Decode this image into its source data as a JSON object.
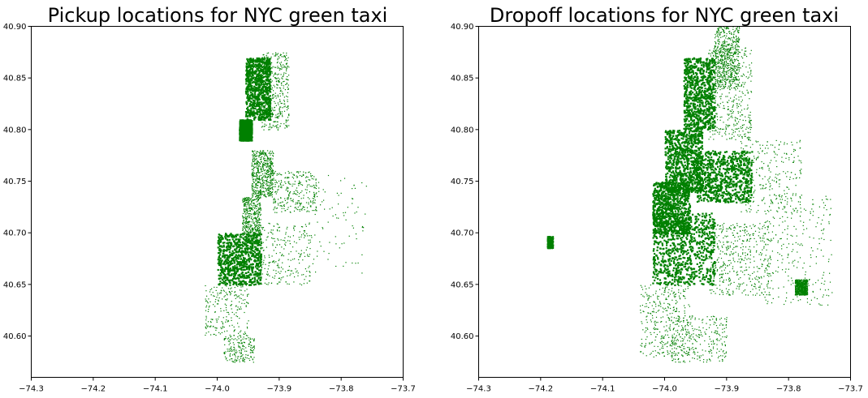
{
  "chart_data": [
    {
      "type": "scatter",
      "title": "Pickup locations for NYC green taxi",
      "xlabel": "",
      "ylabel": "",
      "xlim": [
        -74.3,
        -73.7
      ],
      "ylim": [
        40.56,
        40.9
      ],
      "xticks": [
        -74.3,
        -74.2,
        -74.1,
        -74.0,
        -73.9,
        -73.8,
        -73.7
      ],
      "yticks": [
        40.6,
        40.65,
        40.7,
        40.75,
        40.8,
        40.85,
        40.9
      ],
      "xtick_labels": [
        "−74.3",
        "−74.2",
        "−74.1",
        "−74.0",
        "−73.9",
        "−73.8",
        "−73.7"
      ],
      "ytick_labels": [
        "40.60",
        "40.65",
        "40.70",
        "40.75",
        "40.80",
        "40.85",
        "40.90"
      ],
      "color": "#008000",
      "grid": false,
      "clusters": [
        {
          "lon": [
            -73.965,
            -73.945
          ],
          "lat": [
            40.79,
            40.81
          ],
          "density": 0.9
        },
        {
          "lon": [
            -73.955,
            -73.915
          ],
          "lat": [
            40.81,
            40.87
          ],
          "density": 0.85
        },
        {
          "lon": [
            -73.93,
            -73.885
          ],
          "lat": [
            40.8,
            40.875
          ],
          "density": 0.5
        },
        {
          "lon": [
            -73.945,
            -73.91
          ],
          "lat": [
            40.735,
            40.78
          ],
          "density": 0.6
        },
        {
          "lon": [
            -73.91,
            -73.84
          ],
          "lat": [
            40.72,
            40.76
          ],
          "density": 0.3
        },
        {
          "lon": [
            -73.96,
            -73.93
          ],
          "lat": [
            40.69,
            40.735
          ],
          "density": 0.55
        },
        {
          "lon": [
            -74.0,
            -73.93
          ],
          "lat": [
            40.65,
            40.7
          ],
          "density": 0.85
        },
        {
          "lon": [
            -73.94,
            -73.85
          ],
          "lat": [
            40.65,
            40.71
          ],
          "density": 0.3
        },
        {
          "lon": [
            -74.02,
            -73.95
          ],
          "lat": [
            40.6,
            40.65
          ],
          "density": 0.25
        },
        {
          "lon": [
            -73.99,
            -73.94
          ],
          "lat": [
            40.575,
            40.6
          ],
          "density": 0.2
        },
        {
          "lon": [
            -73.85,
            -73.76
          ],
          "lat": [
            40.66,
            40.76
          ],
          "density": 0.1
        }
      ]
    },
    {
      "type": "scatter",
      "title": "Dropoff locations for NYC green taxi",
      "xlabel": "",
      "ylabel": "",
      "xlim": [
        -74.3,
        -73.7
      ],
      "ylim": [
        40.56,
        40.9
      ],
      "xticks": [
        -74.3,
        -74.2,
        -74.1,
        -74.0,
        -73.9,
        -73.8,
        -73.7
      ],
      "yticks": [
        40.6,
        40.65,
        40.7,
        40.75,
        40.8,
        40.85,
        40.9
      ],
      "xtick_labels": [
        "−74.3",
        "−74.2",
        "−74.1",
        "−74.0",
        "−73.9",
        "−73.8",
        "−73.7"
      ],
      "ytick_labels": [
        "40.60",
        "40.65",
        "40.70",
        "40.75",
        "40.80",
        "40.85",
        "40.90"
      ],
      "color": "#008000",
      "grid": false,
      "clusters": [
        {
          "lon": [
            -74.02,
            -73.96
          ],
          "lat": [
            40.7,
            40.75
          ],
          "density": 0.95
        },
        {
          "lon": [
            -74.0,
            -73.94
          ],
          "lat": [
            40.74,
            40.8
          ],
          "density": 0.95
        },
        {
          "lon": [
            -73.97,
            -73.92
          ],
          "lat": [
            40.8,
            40.87
          ],
          "density": 0.9
        },
        {
          "lon": [
            -73.92,
            -73.88
          ],
          "lat": [
            40.84,
            40.9
          ],
          "density": 0.6
        },
        {
          "lon": [
            -73.93,
            -73.86
          ],
          "lat": [
            40.79,
            40.88
          ],
          "density": 0.5
        },
        {
          "lon": [
            -73.95,
            -73.86
          ],
          "lat": [
            40.73,
            40.78
          ],
          "density": 0.85
        },
        {
          "lon": [
            -73.88,
            -73.78
          ],
          "lat": [
            40.72,
            40.79
          ],
          "density": 0.3
        },
        {
          "lon": [
            -74.02,
            -73.92
          ],
          "lat": [
            40.65,
            40.72
          ],
          "density": 0.9
        },
        {
          "lon": [
            -73.93,
            -73.83
          ],
          "lat": [
            40.64,
            40.71
          ],
          "density": 0.5
        },
        {
          "lon": [
            -73.84,
            -73.73
          ],
          "lat": [
            40.63,
            40.74
          ],
          "density": 0.3
        },
        {
          "lon": [
            -74.04,
            -73.96
          ],
          "lat": [
            40.58,
            40.65
          ],
          "density": 0.4
        },
        {
          "lon": [
            -73.99,
            -73.9
          ],
          "lat": [
            40.575,
            40.62
          ],
          "density": 0.3
        },
        {
          "lon": [
            -73.79,
            -73.77
          ],
          "lat": [
            40.64,
            40.655
          ],
          "density": 0.7
        },
        {
          "lon": [
            -74.19,
            -74.18
          ],
          "lat": [
            40.685,
            40.697
          ],
          "density": 0.6
        }
      ]
    }
  ]
}
